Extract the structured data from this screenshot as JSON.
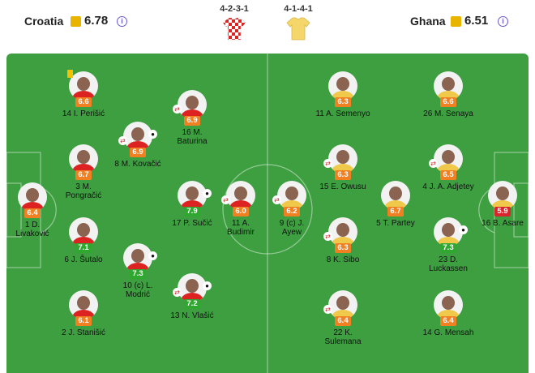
{
  "header": {
    "home": {
      "name": "Croatia",
      "rating": "6.78",
      "formation": "4-2-3-1"
    },
    "away": {
      "name": "Ghana",
      "rating": "6.51",
      "formation": "4-1-4-1"
    }
  },
  "players": {
    "home": [
      {
        "number": "14",
        "name": "I. Perišić",
        "rating": "6.6"
      },
      {
        "number": "16",
        "name": "M. Baturina",
        "rating": "6.9"
      },
      {
        "number": "8",
        "name": "M. Kovačić",
        "rating": "6.9"
      },
      {
        "number": "3",
        "name": "M. Pongračić",
        "rating": "6.7"
      },
      {
        "number": "1",
        "name": "D. Livaković",
        "rating": "6.4"
      },
      {
        "number": "17",
        "name": "P. Sučić",
        "rating": "7.9"
      },
      {
        "number": "11",
        "name": "A. Budimir",
        "rating": "6.0"
      },
      {
        "number": "6",
        "name": "J. Šutalo",
        "rating": "7.1"
      },
      {
        "number": "10",
        "name": "(c) L. Modrić",
        "rating": "7.3"
      },
      {
        "number": "13",
        "name": "N. Vlašić",
        "rating": "7.2"
      },
      {
        "number": "2",
        "name": "J. Stanišić",
        "rating": "6.1"
      }
    ],
    "away": [
      {
        "number": "11",
        "name": "A. Semenyo",
        "rating": "6.3"
      },
      {
        "number": "26",
        "name": "M. Senaya",
        "rating": "6.6"
      },
      {
        "number": "15",
        "name": "E. Owusu",
        "rating": "6.3"
      },
      {
        "number": "4",
        "name": "J. A. Adjetey",
        "rating": "6.5"
      },
      {
        "number": "9",
        "name": "(c) J. Ayew",
        "rating": "6.2"
      },
      {
        "number": "5",
        "name": "T. Partey",
        "rating": "6.7"
      },
      {
        "number": "16",
        "name": "B. Asare",
        "rating": "5.9"
      },
      {
        "number": "8",
        "name": "K. Sibo",
        "rating": "6.3"
      },
      {
        "number": "23",
        "name": "D. Luckassen",
        "rating": "7.3"
      },
      {
        "number": "22",
        "name": "K. Sulemana",
        "rating": "6.4"
      },
      {
        "number": "14",
        "name": "G. Mensah",
        "rating": "6.4"
      }
    ]
  }
}
